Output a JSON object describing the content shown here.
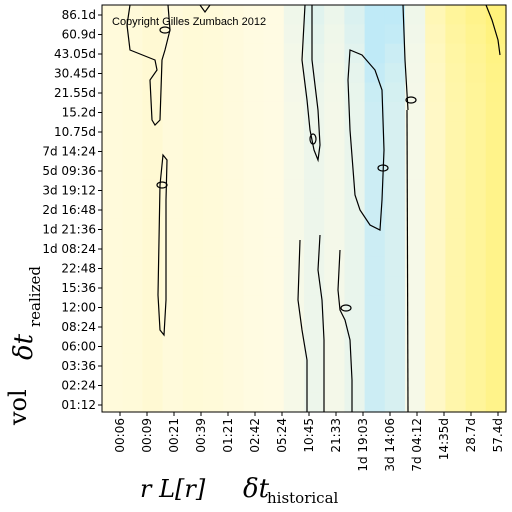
{
  "chart_data": {
    "type": "heatmap",
    "copyright": "Copyright Gilles Zumbach 2012",
    "y_ticks": [
      "86.1d",
      "60.9d",
      "43.05d",
      "30.45d",
      "21.55d",
      "15.2d",
      "10.75d",
      "7d 14:24",
      "5d 09:36",
      "3d 19:12",
      "2d 16:48",
      "1d 21:36",
      "1d 08:24",
      "22:48",
      "15:36",
      "12:00",
      "08:24",
      "06:00",
      "03:36",
      "02:24",
      "01:12"
    ],
    "x_ticks": [
      "00:06",
      "00:09",
      "00:21",
      "00:39",
      "01:21",
      "02:42",
      "05:24",
      "10:45",
      "21:33",
      "1d 19:03",
      "3d 14:06",
      "7d 04:12",
      "14:35d",
      "28.7d",
      "57.4d"
    ],
    "y_label": {
      "vol": "vol",
      "main": "δt",
      "sub": "realized"
    },
    "x_label": {
      "prefix": "r L[r]",
      "main": "δt",
      "sub": "historical"
    },
    "colors": {
      "low": "#bfeaf7",
      "mid": "#fffbe6",
      "high": "#fff27a",
      "contour": "#000000"
    },
    "column_intensity": [
      0.1,
      0.12,
      0.18,
      0.1,
      0.14,
      0.12,
      0.08,
      0.05,
      0.03,
      -0.05,
      -0.1,
      -0.06,
      -0.12,
      -0.28,
      -0.22,
      -0.05,
      0.3,
      0.55,
      0.7,
      0.85
    ],
    "row_intensity_top_boost": [
      0.35,
      0.25,
      0.15,
      0.08,
      0.03,
      0,
      0,
      0,
      0,
      0,
      0,
      0,
      0,
      0,
      0,
      0,
      0,
      0,
      0,
      0,
      0
    ]
  }
}
